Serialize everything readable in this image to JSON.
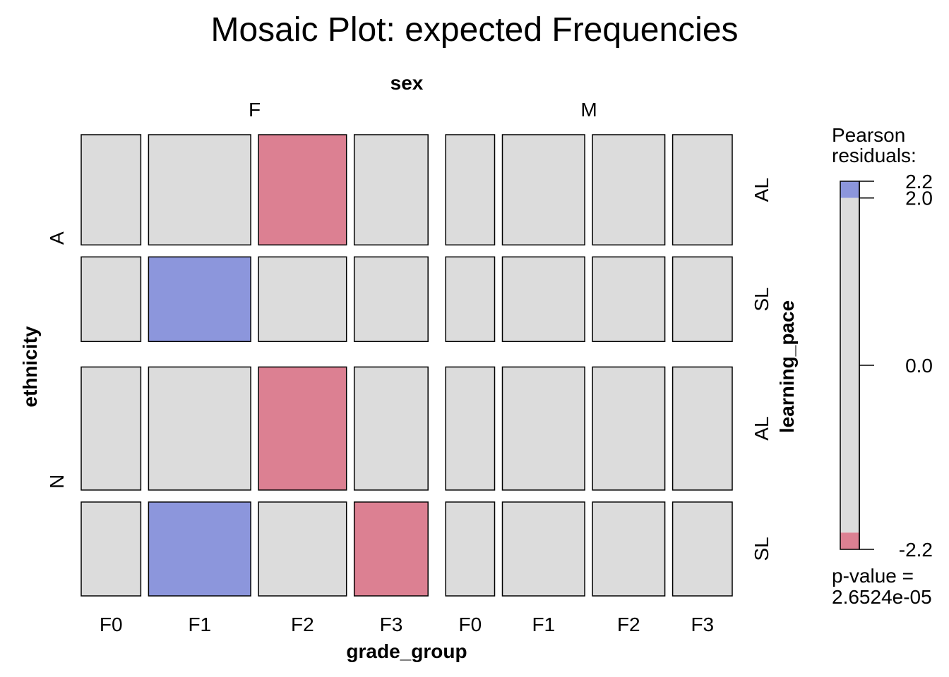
{
  "chart_data": {
    "type": "mosaic",
    "title": "Mosaic Plot: expected Frequencies",
    "top_variable": {
      "label": "sex",
      "levels": [
        "F",
        "M"
      ]
    },
    "x_variable": {
      "label": "grade_group",
      "levels": [
        "F0",
        "F1",
        "F2",
        "F3"
      ]
    },
    "left_variable": {
      "label": "ethnicity",
      "levels": [
        "A",
        "N"
      ]
    },
    "right_variable": {
      "label": "learning_pace",
      "levels": [
        "AL",
        "SL"
      ]
    },
    "cell_color_key": {
      "positive_high": "#8C96DC",
      "neutral": "#DCDCDC",
      "negative_high": "#DC8092",
      "border": "#000000"
    },
    "column_relative_widths": {
      "F": [
        0.84,
        1.44,
        1.24,
        1.04
      ],
      "M": [
        0.69,
        1.16,
        1.02,
        0.84
      ]
    },
    "row_relative_heights": {
      "A": {
        "AL": 1.55,
        "SL": 1.19
      },
      "N": {
        "AL": 1.73,
        "SL": 1.32
      }
    },
    "cells": [
      {
        "sex": "F",
        "grade": "F0",
        "ethnicity": "A",
        "pace": "AL",
        "shade": "neutral"
      },
      {
        "sex": "F",
        "grade": "F1",
        "ethnicity": "A",
        "pace": "AL",
        "shade": "neutral"
      },
      {
        "sex": "F",
        "grade": "F2",
        "ethnicity": "A",
        "pace": "AL",
        "shade": "negative_high"
      },
      {
        "sex": "F",
        "grade": "F3",
        "ethnicity": "A",
        "pace": "AL",
        "shade": "neutral"
      },
      {
        "sex": "M",
        "grade": "F0",
        "ethnicity": "A",
        "pace": "AL",
        "shade": "neutral"
      },
      {
        "sex": "M",
        "grade": "F1",
        "ethnicity": "A",
        "pace": "AL",
        "shade": "neutral"
      },
      {
        "sex": "M",
        "grade": "F2",
        "ethnicity": "A",
        "pace": "AL",
        "shade": "neutral"
      },
      {
        "sex": "M",
        "grade": "F3",
        "ethnicity": "A",
        "pace": "AL",
        "shade": "neutral"
      },
      {
        "sex": "F",
        "grade": "F0",
        "ethnicity": "A",
        "pace": "SL",
        "shade": "neutral"
      },
      {
        "sex": "F",
        "grade": "F1",
        "ethnicity": "A",
        "pace": "SL",
        "shade": "positive_high"
      },
      {
        "sex": "F",
        "grade": "F2",
        "ethnicity": "A",
        "pace": "SL",
        "shade": "neutral"
      },
      {
        "sex": "F",
        "grade": "F3",
        "ethnicity": "A",
        "pace": "SL",
        "shade": "neutral"
      },
      {
        "sex": "M",
        "grade": "F0",
        "ethnicity": "A",
        "pace": "SL",
        "shade": "neutral"
      },
      {
        "sex": "M",
        "grade": "F1",
        "ethnicity": "A",
        "pace": "SL",
        "shade": "neutral"
      },
      {
        "sex": "M",
        "grade": "F2",
        "ethnicity": "A",
        "pace": "SL",
        "shade": "neutral"
      },
      {
        "sex": "M",
        "grade": "F3",
        "ethnicity": "A",
        "pace": "SL",
        "shade": "neutral"
      },
      {
        "sex": "F",
        "grade": "F0",
        "ethnicity": "N",
        "pace": "AL",
        "shade": "neutral"
      },
      {
        "sex": "F",
        "grade": "F1",
        "ethnicity": "N",
        "pace": "AL",
        "shade": "neutral"
      },
      {
        "sex": "F",
        "grade": "F2",
        "ethnicity": "N",
        "pace": "AL",
        "shade": "negative_high"
      },
      {
        "sex": "F",
        "grade": "F3",
        "ethnicity": "N",
        "pace": "AL",
        "shade": "neutral"
      },
      {
        "sex": "M",
        "grade": "F0",
        "ethnicity": "N",
        "pace": "AL",
        "shade": "neutral"
      },
      {
        "sex": "M",
        "grade": "F1",
        "ethnicity": "N",
        "pace": "AL",
        "shade": "neutral"
      },
      {
        "sex": "M",
        "grade": "F2",
        "ethnicity": "N",
        "pace": "AL",
        "shade": "neutral"
      },
      {
        "sex": "M",
        "grade": "F3",
        "ethnicity": "N",
        "pace": "AL",
        "shade": "neutral"
      },
      {
        "sex": "F",
        "grade": "F0",
        "ethnicity": "N",
        "pace": "SL",
        "shade": "neutral"
      },
      {
        "sex": "F",
        "grade": "F1",
        "ethnicity": "N",
        "pace": "SL",
        "shade": "positive_high"
      },
      {
        "sex": "F",
        "grade": "F2",
        "ethnicity": "N",
        "pace": "SL",
        "shade": "neutral"
      },
      {
        "sex": "F",
        "grade": "F3",
        "ethnicity": "N",
        "pace": "SL",
        "shade": "negative_high"
      },
      {
        "sex": "M",
        "grade": "F0",
        "ethnicity": "N",
        "pace": "SL",
        "shade": "neutral"
      },
      {
        "sex": "M",
        "grade": "F1",
        "ethnicity": "N",
        "pace": "SL",
        "shade": "neutral"
      },
      {
        "sex": "M",
        "grade": "F2",
        "ethnicity": "N",
        "pace": "SL",
        "shade": "neutral"
      },
      {
        "sex": "M",
        "grade": "F3",
        "ethnicity": "N",
        "pace": "SL",
        "shade": "neutral"
      }
    ],
    "legend": {
      "title_line1": "Pearson",
      "title_line2": "residuals:",
      "range": [
        -2.2,
        2.2
      ],
      "shade_threshold": 2.0,
      "ticks": [
        {
          "value": 2.2,
          "label": "2.2"
        },
        {
          "value": 2.0,
          "label": "2.0"
        },
        {
          "value": 0.0,
          "label": "0.0"
        },
        {
          "value": -2.2,
          "label": "-2.2"
        }
      ],
      "p_value_line1": "p-value =",
      "p_value_line2": "2.6524e-05"
    }
  }
}
